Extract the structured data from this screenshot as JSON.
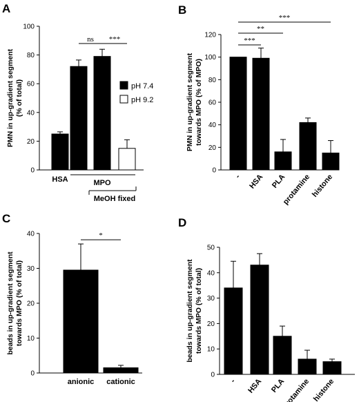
{
  "chart_data": [
    {
      "panel": "A",
      "type": "bar",
      "ylabel": [
        "PMN in up-gradient segment",
        "(% of total)"
      ],
      "ylim": [
        0,
        100
      ],
      "yticks": [
        "0",
        "20",
        "40",
        "60",
        "80",
        "100"
      ],
      "ytick_values": [
        0,
        20,
        40,
        60,
        80,
        100
      ],
      "bars": [
        {
          "value": 25,
          "error": 1.5,
          "fill": "#000000"
        },
        {
          "value": 72,
          "error": 4.5,
          "fill": "#000000"
        },
        {
          "value": 79,
          "error": 5,
          "fill": "#000000"
        },
        {
          "value": 15,
          "error": 6,
          "fill": "#ffffff"
        }
      ],
      "legend": [
        "pH 7.4",
        "pH 9.2"
      ],
      "significance": [
        {
          "bars": [
            1,
            2
          ],
          "label": "ns"
        },
        {
          "bars": [
            2,
            3
          ],
          "label": "***"
        }
      ],
      "category_labels": [
        "HSA",
        "MPO",
        "MeOH fixed"
      ]
    },
    {
      "panel": "B",
      "type": "bar",
      "ylabel": [
        "PMN in up-gradient segment",
        "towards MPO (% of MPO)"
      ],
      "ylim": [
        0,
        120
      ],
      "yticks": [
        "0",
        "20",
        "40",
        "60",
        "80",
        "100",
        "120"
      ],
      "ytick_values": [
        0,
        20,
        40,
        60,
        80,
        100,
        120
      ],
      "categories": [
        "-",
        "HSA",
        "PLA",
        "protamine",
        "histone"
      ],
      "values": [
        100,
        99,
        16,
        42,
        15
      ],
      "errors": [
        0,
        9,
        11,
        4,
        11
      ],
      "significance": [
        {
          "bars": [
            0,
            1
          ],
          "label": "***"
        },
        {
          "bars": [
            0,
            2
          ],
          "label": "**"
        },
        {
          "bars": [
            0,
            4
          ],
          "label": "***"
        }
      ]
    },
    {
      "panel": "C",
      "type": "bar",
      "ylabel": [
        "beads in up-gradient segment",
        "towards MPO (% of total)"
      ],
      "ylim": [
        0,
        40
      ],
      "yticks": [
        "0",
        "10",
        "20",
        "30",
        "40"
      ],
      "ytick_values": [
        0,
        10,
        20,
        30,
        40
      ],
      "categories": [
        "anionic",
        "cationic"
      ],
      "values": [
        29.5,
        1.5
      ],
      "errors": [
        7.5,
        0.7
      ],
      "significance": [
        {
          "bars": [
            0,
            1
          ],
          "label": "*"
        }
      ]
    },
    {
      "panel": "D",
      "type": "bar",
      "ylabel": [
        "beads in up-gradient segment",
        "towards MPO (% of total)"
      ],
      "ylim": [
        0,
        50
      ],
      "yticks": [
        "0",
        "10",
        "20",
        "30",
        "40",
        "50"
      ],
      "ytick_values": [
        0,
        10,
        20,
        30,
        40,
        50
      ],
      "categories": [
        "-",
        "HSA",
        "PLA",
        "protamine",
        "histone"
      ],
      "values": [
        34,
        43,
        15,
        6,
        5
      ],
      "errors": [
        10.5,
        4.5,
        4,
        3.5,
        1
      ],
      "significance": []
    }
  ],
  "colors": {
    "bar_fill": "#000000",
    "axis": "#000000",
    "background": "#ffffff"
  }
}
